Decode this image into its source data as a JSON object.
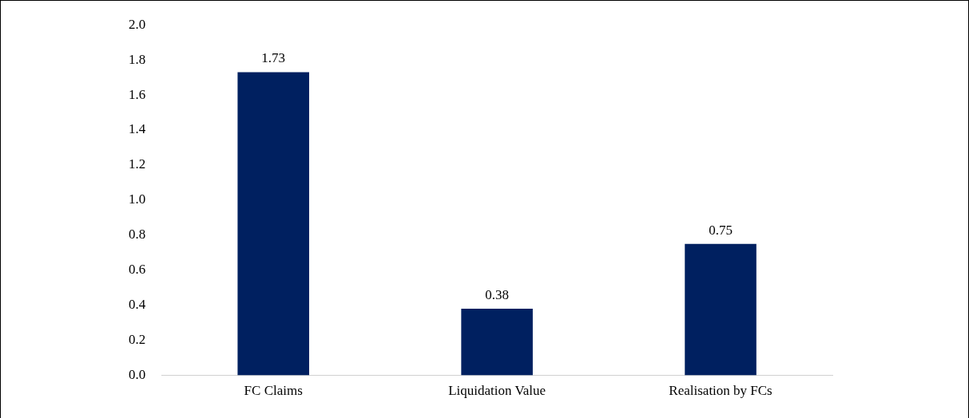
{
  "chart_data": {
    "type": "bar",
    "categories": [
      "FC Claims",
      "Liquidation Value",
      "Realisation by FCs"
    ],
    "values": [
      1.73,
      0.38,
      0.75
    ],
    "color": "#002060",
    "ylim": [
      0,
      2.0
    ],
    "yticks": [
      {
        "value": 0,
        "label": "0.0"
      },
      {
        "value": 0.2,
        "label": "0.2"
      },
      {
        "value": 0.4,
        "label": "0.4"
      },
      {
        "value": 0.6,
        "label": "0.6"
      },
      {
        "value": 0.8,
        "label": "0.8"
      },
      {
        "value": 1.0,
        "label": "1.0"
      },
      {
        "value": 1.2,
        "label": "1.2"
      },
      {
        "value": 1.4,
        "label": "1.4"
      },
      {
        "value": 1.6,
        "label": "1.6"
      },
      {
        "value": 1.8,
        "label": "1.8"
      },
      {
        "value": 2.0,
        "label": "2.0"
      }
    ],
    "grid": false,
    "legend": false,
    "data_labels": true
  }
}
